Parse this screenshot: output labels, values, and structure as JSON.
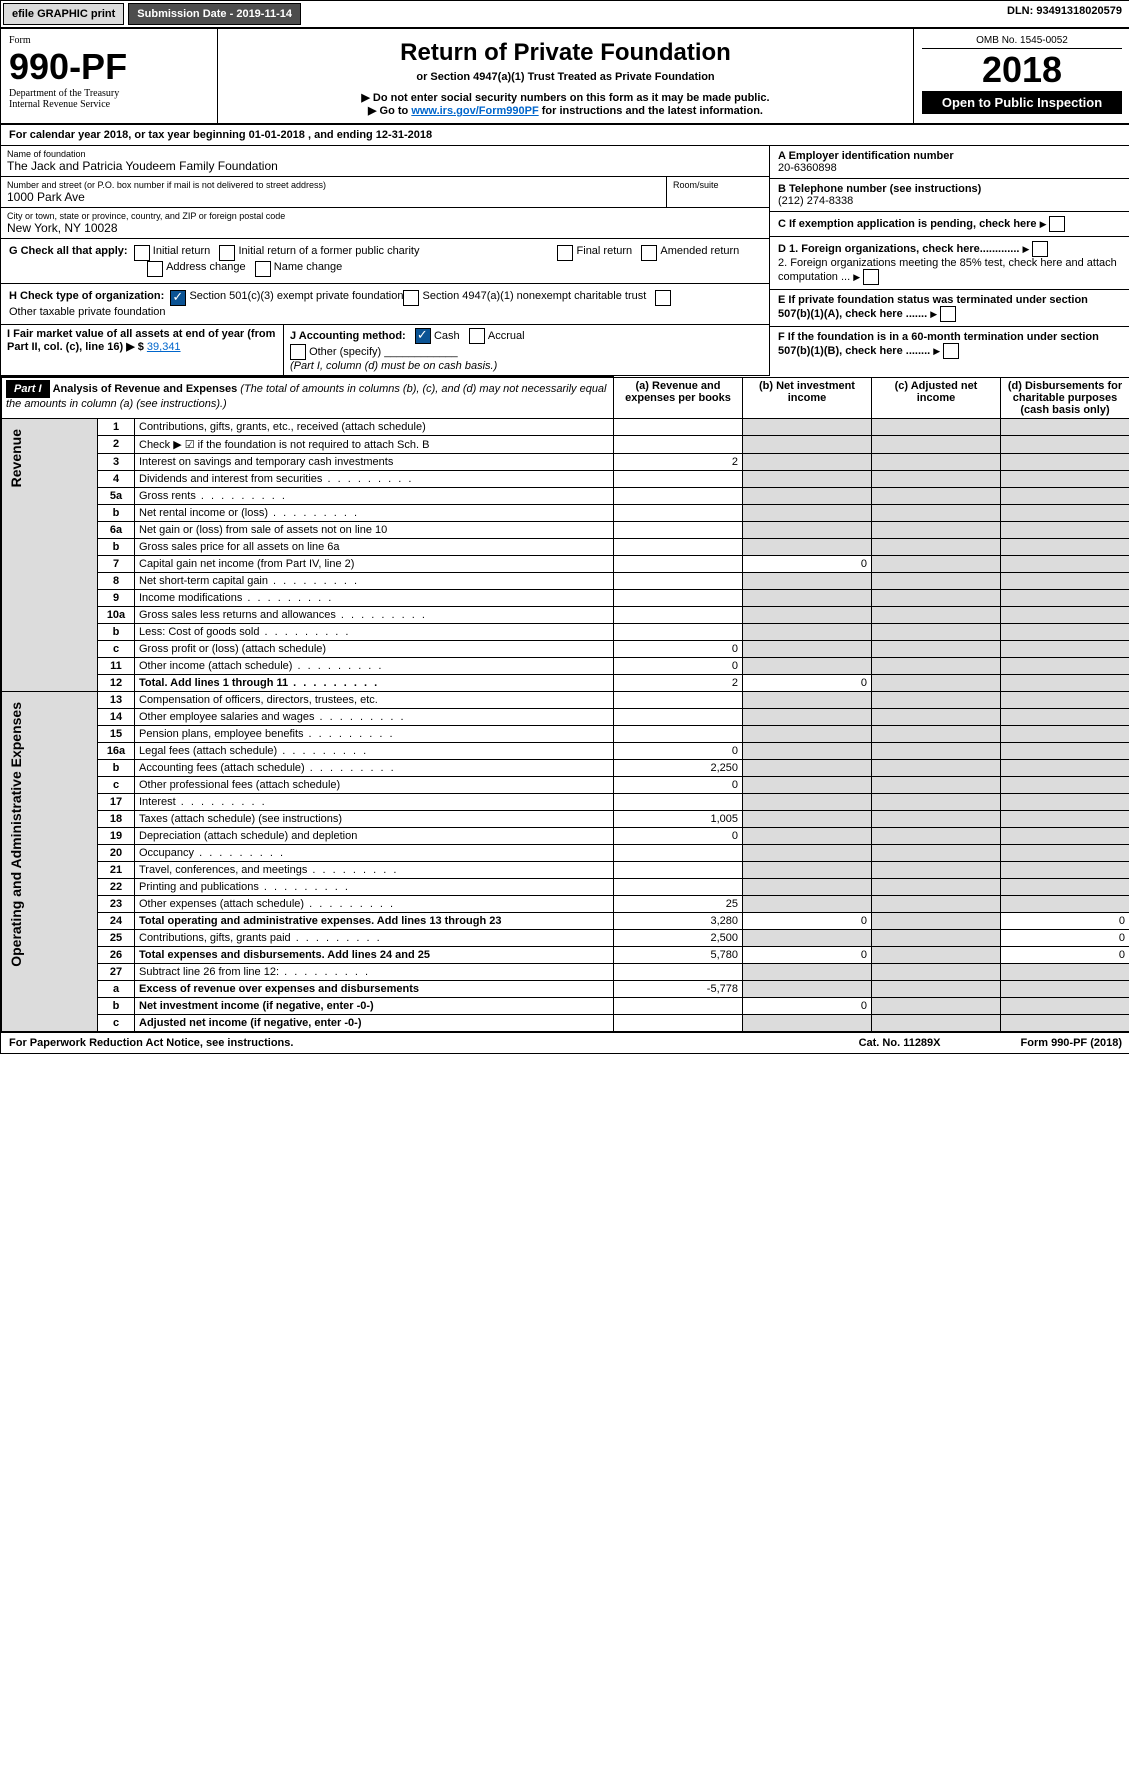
{
  "topbar": {
    "efile": "efile GRAPHIC print",
    "subdate_label": "Submission Date - ",
    "subdate": "2019-11-14",
    "dln_label": "DLN: ",
    "dln": "93491318020579"
  },
  "hdr": {
    "form_label": "Form",
    "form_no": "990-PF",
    "dept": "Department of the Treasury",
    "irs": "Internal Revenue Service",
    "title": "Return of Private Foundation",
    "subtitle": "or Section 4947(a)(1) Trust Treated as Private Foundation",
    "note1": "▶ Do not enter social security numbers on this form as it may be made public.",
    "note2": "▶ Go to ",
    "note2_link": "www.irs.gov/Form990PF",
    "note2_tail": " for instructions and the latest information.",
    "omb": "OMB No. 1545-0052",
    "year": "2018",
    "open": "Open to Public Inspection"
  },
  "calyear": "For calendar year 2018, or tax year beginning 01-01-2018                    , and ending 12-31-2018",
  "entity": {
    "name_lbl": "Name of foundation",
    "name": "The Jack and Patricia Youdeem Family Foundation",
    "addr_lbl": "Number and street (or P.O. box number if mail is not delivered to street address)",
    "room_lbl": "Room/suite",
    "addr": "1000 Park Ave",
    "city_lbl": "City or town, state or province, country, and ZIP or foreign postal code",
    "city": "New York, NY  10028",
    "ein_lbl": "A Employer identification number",
    "ein": "20-6360898",
    "tel_lbl": "B Telephone number (see instructions)",
    "tel": "(212) 274-8338",
    "c_lbl": "C If exemption application is pending, check here",
    "d1": "D 1. Foreign organizations, check here.............",
    "d2": "2. Foreign organizations meeting the 85% test, check here and attach computation ...",
    "e_lbl": "E  If private foundation status was terminated under section 507(b)(1)(A), check here .......",
    "f_lbl": "F  If the foundation is in a 60-month termination under section 507(b)(1)(B), check here ........"
  },
  "g": {
    "label": "G Check all that apply:",
    "opts": [
      "Initial return",
      "Final return",
      "Address change",
      "Initial return of a former public charity",
      "Amended return",
      "Name change"
    ]
  },
  "h": {
    "label": "H Check type of organization:",
    "opts": [
      "Section 501(c)(3) exempt private foundation",
      "Section 4947(a)(1) nonexempt charitable trust",
      "Other taxable private foundation"
    ]
  },
  "i": {
    "label": "I Fair market value of all assets at end of year (from Part II, col. (c), line 16) ▶ $",
    "val": "39,341"
  },
  "j": {
    "label": "J Accounting method:",
    "opts": [
      "Cash",
      "Accrual"
    ],
    "other": "Other (specify)",
    "note": "(Part I, column (d) must be on cash basis.)"
  },
  "partI": {
    "title": "Part I",
    "heading": "Analysis of Revenue and Expenses",
    "subhead": "(The total of amounts in columns (b), (c), and (d) may not necessarily equal the amounts in column (a) (see instructions).)",
    "cols": [
      "(a)   Revenue and expenses per books",
      "(b)  Net investment income",
      "(c)  Adjusted net income",
      "(d)  Disbursements for charitable purposes (cash basis only)"
    ]
  },
  "sections": {
    "revenue": "Revenue",
    "expenses": "Operating and Administrative Expenses"
  },
  "rows": [
    {
      "n": "1",
      "d": "Contributions, gifts, grants, etc., received (attach schedule)"
    },
    {
      "n": "2",
      "d": "Check ▶ ☑ if the foundation is not required to attach Sch. B",
      "checked": true
    },
    {
      "n": "3",
      "d": "Interest on savings and temporary cash investments",
      "a": "2"
    },
    {
      "n": "4",
      "d": "Dividends and interest from securities"
    },
    {
      "n": "5a",
      "d": "Gross rents"
    },
    {
      "n": "b",
      "d": "Net rental income or (loss)"
    },
    {
      "n": "6a",
      "d": "Net gain or (loss) from sale of assets not on line 10"
    },
    {
      "n": "b",
      "d": "Gross sales price for all assets on line 6a"
    },
    {
      "n": "7",
      "d": "Capital gain net income (from Part IV, line 2)",
      "b": "0"
    },
    {
      "n": "8",
      "d": "Net short-term capital gain"
    },
    {
      "n": "9",
      "d": "Income modifications"
    },
    {
      "n": "10a",
      "d": "Gross sales less returns and allowances"
    },
    {
      "n": "b",
      "d": "Less: Cost of goods sold"
    },
    {
      "n": "c",
      "d": "Gross profit or (loss) (attach schedule)",
      "a": "0"
    },
    {
      "n": "11",
      "d": "Other income (attach schedule)",
      "a": "0"
    },
    {
      "n": "12",
      "d": "Total. Add lines 1 through 11",
      "a": "2",
      "b": "0",
      "bold": true
    },
    {
      "n": "13",
      "d": "Compensation of officers, directors, trustees, etc."
    },
    {
      "n": "14",
      "d": "Other employee salaries and wages"
    },
    {
      "n": "15",
      "d": "Pension plans, employee benefits"
    },
    {
      "n": "16a",
      "d": "Legal fees (attach schedule)",
      "a": "0"
    },
    {
      "n": "b",
      "d": "Accounting fees (attach schedule)",
      "a": "2,250"
    },
    {
      "n": "c",
      "d": "Other professional fees (attach schedule)",
      "a": "0"
    },
    {
      "n": "17",
      "d": "Interest"
    },
    {
      "n": "18",
      "d": "Taxes (attach schedule) (see instructions)",
      "a": "1,005"
    },
    {
      "n": "19",
      "d": "Depreciation (attach schedule) and depletion",
      "a": "0"
    },
    {
      "n": "20",
      "d": "Occupancy"
    },
    {
      "n": "21",
      "d": "Travel, conferences, and meetings"
    },
    {
      "n": "22",
      "d": "Printing and publications"
    },
    {
      "n": "23",
      "d": "Other expenses (attach schedule)",
      "a": "25"
    },
    {
      "n": "24",
      "d": "Total operating and administrative expenses. Add lines 13 through 23",
      "a": "3,280",
      "b": "0",
      "dv": "0",
      "bold": true
    },
    {
      "n": "25",
      "d": "Contributions, gifts, grants paid",
      "a": "2,500",
      "dv": "0"
    },
    {
      "n": "26",
      "d": "Total expenses and disbursements. Add lines 24 and 25",
      "a": "5,780",
      "b": "0",
      "dv": "0",
      "bold": true
    },
    {
      "n": "27",
      "d": "Subtract line 26 from line 12:"
    },
    {
      "n": "a",
      "d": "Excess of revenue over expenses and disbursements",
      "a": "-5,778",
      "bold": true
    },
    {
      "n": "b",
      "d": "Net investment income (if negative, enter -0-)",
      "b": "0",
      "bold": true
    },
    {
      "n": "c",
      "d": "Adjusted net income (if negative, enter -0-)",
      "bold": true
    }
  ],
  "footer": {
    "pra": "For Paperwork Reduction Act Notice, see instructions.",
    "cat": "Cat. No. 11289X",
    "form": "Form 990-PF (2018)"
  }
}
